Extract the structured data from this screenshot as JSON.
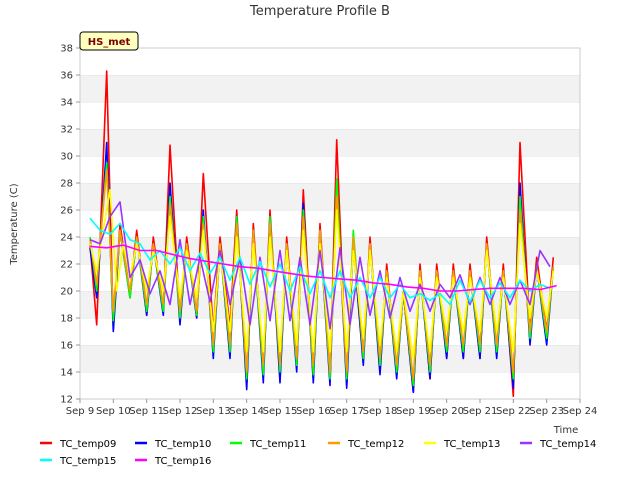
{
  "chart_data": {
    "type": "line",
    "title": "Temperature Profile B",
    "xlabel": "Time",
    "ylabel": "Temperature (C)",
    "badge": "HS_met",
    "ylim": [
      12,
      38
    ],
    "yticks": [
      12,
      14,
      16,
      18,
      20,
      22,
      24,
      26,
      28,
      30,
      32,
      34,
      36,
      38
    ],
    "xlim": [
      9,
      24
    ],
    "xticks": [
      {
        "v": 9,
        "label": "Sep 9"
      },
      {
        "v": 10,
        "label": "Sep 10"
      },
      {
        "v": 11,
        "label": "Sep 11"
      },
      {
        "v": 12,
        "label": "Sep 12"
      },
      {
        "v": 13,
        "label": "Sep 13"
      },
      {
        "v": 14,
        "label": "Sep 14"
      },
      {
        "v": 15,
        "label": "Sep 15"
      },
      {
        "v": 16,
        "label": "Sep 16"
      },
      {
        "v": 17,
        "label": "Sep 17"
      },
      {
        "v": 18,
        "label": "Sep 18"
      },
      {
        "v": 19,
        "label": "Sep 19"
      },
      {
        "v": 20,
        "label": "Sep 20"
      },
      {
        "v": 21,
        "label": "Sep 21"
      },
      {
        "v": 22,
        "label": "Sep 22"
      },
      {
        "v": 23,
        "label": "Sep 23"
      },
      {
        "v": 24,
        "label": "Sep 24"
      }
    ],
    "grid": "horizontal bands",
    "legend_position": "bottom",
    "series": [
      {
        "name": "TC_temp09",
        "color": "#ff0000",
        "x": [
          9.3,
          9.5,
          9.6,
          9.8,
          10.0,
          10.2,
          10.5,
          10.7,
          11.0,
          11.2,
          11.5,
          11.7,
          12.0,
          12.2,
          12.5,
          12.7,
          13.0,
          13.2,
          13.5,
          13.7,
          14.0,
          14.2,
          14.5,
          14.7,
          15.0,
          15.2,
          15.5,
          15.7,
          16.0,
          16.2,
          16.5,
          16.7,
          17.0,
          17.2,
          17.5,
          17.7,
          18.0,
          18.2,
          18.5,
          18.7,
          19.0,
          19.2,
          19.5,
          19.7,
          20.0,
          20.2,
          20.5,
          20.7,
          21.0,
          21.2,
          21.5,
          21.7,
          22.0,
          22.2,
          22.5,
          22.7,
          23.0,
          23.2
        ],
        "y": [
          23.5,
          17.5,
          23.5,
          36.3,
          17.2,
          25,
          19.8,
          24.5,
          18.2,
          24,
          18.5,
          30.8,
          18,
          24,
          18,
          28.7,
          17,
          24,
          17.3,
          26,
          13,
          25,
          14,
          26,
          13.5,
          24,
          14.8,
          27.5,
          13.5,
          25,
          13.5,
          31.2,
          13,
          24,
          15,
          24,
          14,
          22,
          14,
          20,
          12.5,
          22,
          13.5,
          22,
          15,
          22,
          15,
          22,
          15,
          24,
          15.5,
          22,
          12.2,
          31,
          17,
          22.5,
          17,
          22.5
        ]
      },
      {
        "name": "TC_temp10",
        "color": "#0000ff",
        "x": [
          9.3,
          9.5,
          9.6,
          9.8,
          10.0,
          10.2,
          10.5,
          10.7,
          11.0,
          11.2,
          11.5,
          11.7,
          12.0,
          12.2,
          12.5,
          12.7,
          13.0,
          13.2,
          13.5,
          13.7,
          14.0,
          14.2,
          14.5,
          14.7,
          15.0,
          15.2,
          15.5,
          15.7,
          16.0,
          16.2,
          16.5,
          16.7,
          17.0,
          17.2,
          17.5,
          17.7,
          18.0,
          18.2,
          18.5,
          18.7,
          19.0,
          19.2,
          19.5,
          19.7,
          20.0,
          20.2,
          20.5,
          20.7,
          21.0,
          21.2,
          21.5,
          21.7,
          22.0,
          22.2,
          22.5,
          22.7,
          23.0,
          23.2
        ],
        "y": [
          23.2,
          19.5,
          23,
          31,
          17,
          24.5,
          19.5,
          24,
          18.2,
          23.5,
          18.2,
          28,
          17.5,
          23.5,
          18,
          26,
          15,
          23.5,
          15,
          25.5,
          12.7,
          24.5,
          13.2,
          25.5,
          13.2,
          23.5,
          14,
          26.5,
          13.2,
          24.5,
          13,
          28,
          12.8,
          23.5,
          14.5,
          23.5,
          13.8,
          21.5,
          13.5,
          20,
          12.5,
          21.5,
          13.5,
          21.5,
          15,
          21.5,
          15,
          21.5,
          15,
          23.5,
          15,
          21.5,
          12.8,
          28,
          16,
          21.8,
          16,
          21.8
        ]
      },
      {
        "name": "TC_temp11",
        "color": "#00ff00",
        "x": [
          9.3,
          9.5,
          9.6,
          9.8,
          10.0,
          10.2,
          10.5,
          10.7,
          11.0,
          11.2,
          11.5,
          11.7,
          12.0,
          12.2,
          12.5,
          12.7,
          13.0,
          13.2,
          13.5,
          13.7,
          14.0,
          14.2,
          14.5,
          14.7,
          15.0,
          15.2,
          15.5,
          15.7,
          16.0,
          16.2,
          16.5,
          16.7,
          17.0,
          17.2,
          17.5,
          17.7,
          18.0,
          18.2,
          18.5,
          18.7,
          19.0,
          19.2,
          19.5,
          19.7,
          20.0,
          20.2,
          20.5,
          20.7,
          21.0,
          21.2,
          21.5,
          21.7,
          22.0,
          22.2,
          22.5,
          22.7,
          23.0,
          23.2
        ],
        "y": [
          24,
          20,
          23.5,
          29.5,
          17.8,
          24.5,
          19.5,
          24,
          18.5,
          23.5,
          18.5,
          27,
          18,
          23.5,
          18.2,
          25.5,
          15.5,
          23.5,
          15.5,
          25.5,
          13.5,
          24.5,
          13.8,
          25.5,
          14,
          23.5,
          14.5,
          26,
          13.8,
          24.5,
          13.5,
          28.3,
          13.5,
          24.5,
          15,
          23.5,
          14.5,
          21.5,
          14,
          20,
          13,
          21.5,
          14,
          21.5,
          15.5,
          21.5,
          15.5,
          21.5,
          15.5,
          23.5,
          15.5,
          21.5,
          13.5,
          27,
          16.5,
          21.8,
          16.5,
          21.8
        ]
      },
      {
        "name": "TC_temp12",
        "color": "#ff9900",
        "x": [
          9.3,
          9.5,
          9.6,
          9.8,
          10.0,
          10.2,
          10.5,
          10.7,
          11.0,
          11.2,
          11.5,
          11.7,
          12.0,
          12.2,
          12.5,
          12.7,
          13.0,
          13.2,
          13.5,
          13.7,
          14.0,
          14.2,
          14.5,
          14.7,
          15.0,
          15.2,
          15.5,
          15.7,
          16.0,
          16.2,
          16.5,
          16.7,
          17.0,
          17.2,
          17.5,
          17.7,
          18.0,
          18.2,
          18.5,
          18.7,
          19.0,
          19.2,
          19.5,
          19.7,
          20.0,
          20.2,
          20.5,
          20.7,
          21.0,
          21.2,
          21.5,
          21.7,
          22.0,
          22.2,
          22.5,
          22.7,
          23.0,
          23.2
        ],
        "y": [
          23.8,
          20.5,
          23.5,
          29,
          18.5,
          24.5,
          20,
          24,
          19,
          23.5,
          19,
          26.5,
          18.5,
          23.5,
          18.5,
          25,
          16,
          23.5,
          16,
          25,
          14,
          24.5,
          14.5,
          25,
          14.5,
          23.5,
          15,
          25.5,
          14.5,
          24.5,
          14,
          27,
          14,
          24,
          15.5,
          23.5,
          15,
          21.5,
          14.5,
          20,
          13.5,
          21.5,
          14.5,
          21.5,
          16,
          21.5,
          16,
          21.5,
          16,
          23.5,
          16,
          21.5,
          14,
          26,
          17,
          21.8,
          17,
          21.8
        ]
      },
      {
        "name": "TC_temp13",
        "color": "#ffff00",
        "x": [
          9.3,
          9.5,
          9.7,
          9.9,
          10.1,
          10.3,
          10.5,
          10.7,
          11.0,
          11.2,
          11.5,
          11.7,
          12.0,
          12.2,
          12.5,
          12.7,
          13.0,
          13.2,
          13.5,
          13.7,
          14.0,
          14.2,
          14.5,
          14.7,
          15.0,
          15.2,
          15.5,
          15.7,
          16.0,
          16.2,
          16.5,
          16.7,
          17.0,
          17.2,
          17.5,
          17.7,
          18.0,
          18.2,
          18.5,
          18.7,
          19.0,
          19.2,
          19.5,
          19.7,
          20.0,
          20.2,
          20.5,
          20.7,
          21.0,
          21.2,
          21.5,
          21.7,
          22.0,
          22.2,
          22.5,
          22.7,
          23.0,
          23.2
        ],
        "y": [
          23.5,
          21.5,
          24.5,
          27.5,
          20,
          23.5,
          21,
          23.5,
          20,
          23,
          20,
          25.5,
          19.5,
          23,
          19.5,
          24.5,
          17,
          23,
          17,
          24,
          15.5,
          23.5,
          15.5,
          24,
          15.5,
          23,
          16,
          24.5,
          15.5,
          23.5,
          15.5,
          26,
          15.5,
          23,
          16.5,
          23,
          16,
          21,
          15.5,
          20,
          15,
          21,
          15.5,
          21,
          17,
          21,
          17,
          21,
          17,
          23,
          17,
          21,
          15.5,
          25,
          18,
          21.5,
          18,
          21.5
        ]
      },
      {
        "name": "TC_temp14",
        "color": "#9933ff",
        "x": [
          9.3,
          9.6,
          9.9,
          10.2,
          10.5,
          10.8,
          11.1,
          11.4,
          11.7,
          12.0,
          12.3,
          12.6,
          12.9,
          13.2,
          13.5,
          13.8,
          14.1,
          14.4,
          14.7,
          15.0,
          15.3,
          15.6,
          15.9,
          16.2,
          16.5,
          16.8,
          17.1,
          17.4,
          17.7,
          18.0,
          18.3,
          18.6,
          18.9,
          19.2,
          19.5,
          19.8,
          20.1,
          20.4,
          20.7,
          21.0,
          21.3,
          21.6,
          21.9,
          22.2,
          22.5,
          22.8,
          23.1
        ],
        "y": [
          23.8,
          23.5,
          25.5,
          26.6,
          21,
          22.3,
          19.8,
          21.5,
          19,
          23.8,
          19,
          22.5,
          19.2,
          23,
          19,
          22.5,
          17.5,
          22.5,
          17.8,
          23,
          17.8,
          22.5,
          17.5,
          23,
          17.2,
          23.2,
          17.5,
          22.5,
          18.2,
          21.5,
          18,
          21,
          18.5,
          20.5,
          18.5,
          20.5,
          19.5,
          21.2,
          19,
          21,
          19,
          21,
          19,
          20.8,
          19,
          23,
          21.8
        ]
      },
      {
        "name": "TC_temp15",
        "color": "#00ffff",
        "x": [
          9.3,
          9.6,
          9.9,
          10.2,
          10.5,
          10.8,
          11.1,
          11.4,
          11.7,
          12.0,
          12.3,
          12.6,
          12.9,
          13.2,
          13.5,
          13.8,
          14.1,
          14.4,
          14.7,
          15.0,
          15.3,
          15.6,
          15.9,
          16.2,
          16.5,
          16.8,
          17.1,
          17.4,
          17.7,
          18.0,
          18.3,
          18.6,
          18.9,
          19.2,
          19.5,
          19.8,
          20.1,
          20.4,
          20.7,
          21.0,
          21.3,
          21.6,
          21.9,
          22.2,
          22.5,
          22.8,
          23.1
        ],
        "y": [
          25.4,
          24.5,
          24.2,
          25,
          23.8,
          23.5,
          22.3,
          23,
          22,
          23.2,
          21.5,
          22.8,
          21.3,
          22.5,
          20.8,
          22.5,
          20.5,
          22.2,
          20.3,
          22,
          20,
          21.8,
          19.8,
          21.5,
          19.5,
          21.5,
          19.5,
          21,
          19.5,
          21,
          19.5,
          20.5,
          19.5,
          19.8,
          19.3,
          19.8,
          19,
          20.8,
          19.2,
          20.8,
          19.5,
          20.6,
          19.5,
          20.8,
          20,
          20.5,
          20.2
        ]
      },
      {
        "name": "TC_temp16",
        "color": "#ff00ff",
        "x": [
          9.3,
          9.8,
          10.3,
          10.8,
          11.3,
          11.8,
          12.3,
          12.8,
          13.3,
          13.8,
          14.3,
          14.8,
          15.3,
          15.8,
          16.3,
          16.8,
          17.3,
          17.8,
          18.3,
          18.8,
          19.3,
          19.8,
          20.3,
          20.8,
          21.3,
          21.8,
          22.3,
          22.8,
          23.3
        ],
        "y": [
          23.3,
          23.2,
          23.4,
          23,
          23,
          22.7,
          22.4,
          22.2,
          22,
          21.8,
          21.7,
          21.5,
          21.3,
          21.1,
          21,
          20.9,
          20.8,
          20.6,
          20.5,
          20.3,
          20.2,
          20,
          20,
          20.1,
          20.2,
          20.2,
          20.2,
          20.1,
          20.4
        ]
      }
    ]
  }
}
